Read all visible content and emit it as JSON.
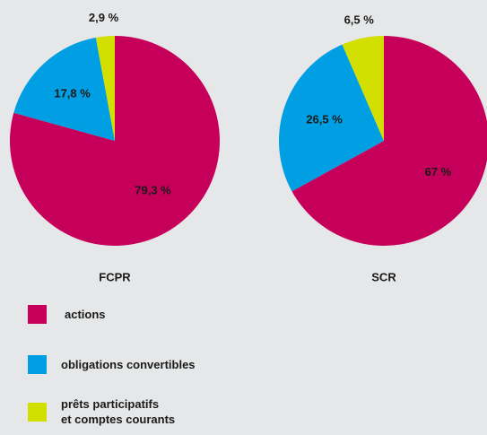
{
  "chart_data": [
    {
      "type": "pie",
      "title": "FCPR",
      "categories": [
        "actions",
        "obligations convertibles",
        "prêts participatifs\net comptes courants"
      ],
      "values": [
        79.3,
        17.8,
        2.9
      ],
      "value_labels": [
        "79,3 %",
        "17,8 %",
        "2,9 %"
      ],
      "colors": [
        "#c6005a",
        "#009ee2",
        "#d3df00"
      ]
    },
    {
      "type": "pie",
      "title": "SCR",
      "categories": [
        "actions",
        "obligations convertibles",
        "prêts participatifs\net comptes courants"
      ],
      "values": [
        67,
        26.5,
        6.5
      ],
      "value_labels": [
        "67 %",
        "26,5 %",
        "6,5 %"
      ],
      "colors": [
        "#c6005a",
        "#009ee2",
        "#d3df00"
      ]
    }
  ]
}
